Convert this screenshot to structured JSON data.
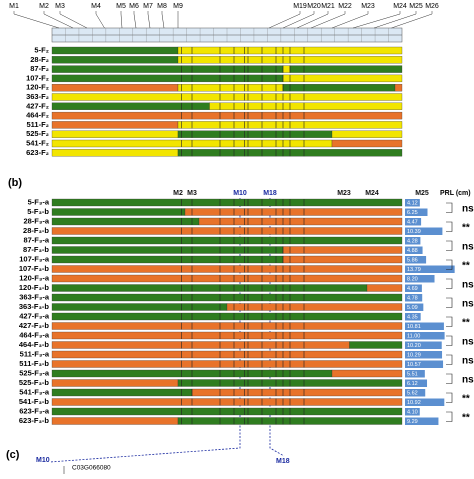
{
  "panel_a": {
    "markers": [
      "M1",
      "M2",
      "M3",
      "M4",
      "M5",
      "M6",
      "M7",
      "M8",
      "M9",
      "M19",
      "M20",
      "M21",
      "M22",
      "M23",
      "M24",
      "M25",
      "M26"
    ],
    "rows": [
      "5-F₂",
      "28-F₂",
      "87-F₂",
      "107-F₂",
      "120-F₂",
      "363-F₂",
      "427-F₂",
      "464-F₂",
      "511-F₂",
      "525-F₂",
      "541-F₂",
      "623-F₂"
    ]
  },
  "panel_b": {
    "label": "(b)",
    "markers": [
      "M2",
      "M3",
      "M10",
      "M18",
      "M23",
      "M24",
      "M25"
    ],
    "prl_header": "PRL (cm)",
    "rows": [
      {
        "name": "5-F₃-a",
        "prl": "4.12"
      },
      {
        "name": "5-F₃-b",
        "prl": "6.25"
      },
      {
        "name": "28-F₃-a",
        "prl": "4.47"
      },
      {
        "name": "28-F₃-b",
        "prl": "10.39"
      },
      {
        "name": "87-F₃-a",
        "prl": "4.28"
      },
      {
        "name": "87-F₃-b",
        "prl": "4.88"
      },
      {
        "name": "107-F₃-a",
        "prl": "5.86"
      },
      {
        "name": "107-F₃-b",
        "prl": "13.79"
      },
      {
        "name": "120-F₃-a",
        "prl": "8.20"
      },
      {
        "name": "120-F₃-b",
        "prl": "4.69"
      },
      {
        "name": "363-F₃-a",
        "prl": "4.78"
      },
      {
        "name": "363-F₃-b",
        "prl": "5.09"
      },
      {
        "name": "427-F₃-a",
        "prl": "4.35"
      },
      {
        "name": "427-F₃-b",
        "prl": "10.81"
      },
      {
        "name": "464-F₃-a",
        "prl": "11.00"
      },
      {
        "name": "464-F₃-b",
        "prl": "10.20"
      },
      {
        "name": "511-F₃-a",
        "prl": "10.29"
      },
      {
        "name": "511-F₃-b",
        "prl": "10.57"
      },
      {
        "name": "525-F₃-a",
        "prl": "5.51"
      },
      {
        "name": "525-F₃-b",
        "prl": "6.12"
      },
      {
        "name": "541-F₃-a",
        "prl": "5.62"
      },
      {
        "name": "541-F₃-b",
        "prl": "10.92"
      },
      {
        "name": "623-F₃-a",
        "prl": "4.10"
      },
      {
        "name": "623-F₃-b",
        "prl": "9.29"
      }
    ],
    "significance": [
      "ns",
      "**",
      "ns",
      "**",
      "ns",
      "ns",
      "**",
      "ns",
      "ns",
      "ns",
      "**",
      "**"
    ]
  },
  "panel_c": {
    "label": "(c)",
    "left_marker": "M10",
    "right_marker": "M18",
    "gene": "C03G066080"
  }
}
